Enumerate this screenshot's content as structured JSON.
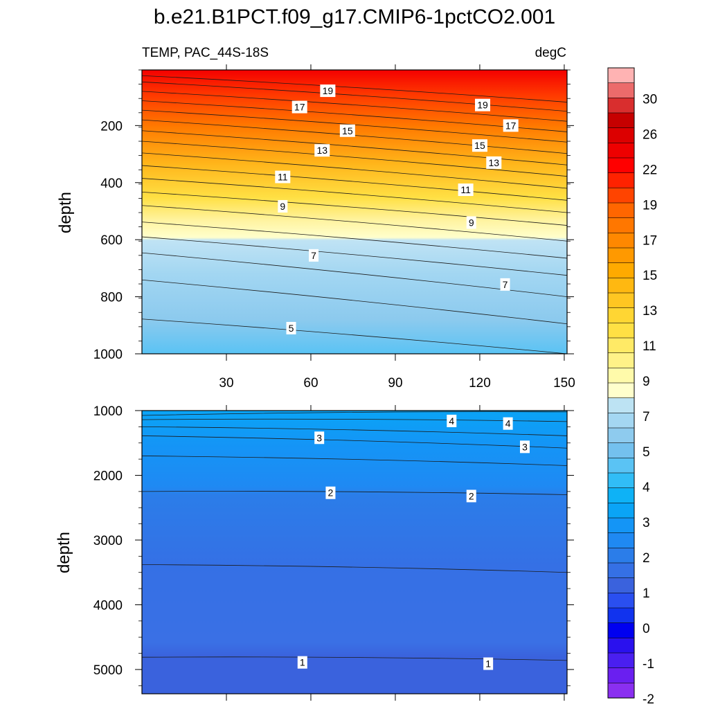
{
  "title": "b.e21.B1PCT.f09_g17.CMIP6-1pctCO2.001",
  "subtitle_left": "TEMP, PAC_44S-18S",
  "subtitle_right": "degC",
  "chart_data": [
    {
      "type": "heatmap",
      "panel": "upper",
      "ylabel": "depth",
      "ylim": [
        1000,
        5
      ],
      "xlim": [
        0,
        151
      ],
      "xticks": [
        30,
        60,
        90,
        120,
        150
      ],
      "yticks": [
        200,
        400,
        600,
        800,
        1000
      ],
      "contour_lines": [
        {
          "level": 5,
          "left": 878,
          "right": 1000
        },
        {
          "level": 6,
          "left": 741,
          "right": 895
        },
        {
          "level": 7,
          "left": 646,
          "right": 800
        },
        {
          "level": 8,
          "left": 590,
          "right": 725
        },
        {
          "level": 9,
          "left": 538,
          "right": 665
        },
        {
          "level": 10,
          "left": 480,
          "right": 605
        },
        {
          "level": 11,
          "left": 433,
          "right": 550
        },
        {
          "level": 12,
          "left": 385,
          "right": 505
        },
        {
          "level": 13,
          "left": 340,
          "right": 462
        },
        {
          "level": 14,
          "left": 296,
          "right": 420
        },
        {
          "level": 15,
          "left": 255,
          "right": 378
        },
        {
          "level": 16,
          "left": 218,
          "right": 338
        },
        {
          "level": 17,
          "left": 180,
          "right": 298
        },
        {
          "level": 18,
          "left": 146,
          "right": 258
        },
        {
          "level": 19,
          "left": 113,
          "right": 222
        },
        {
          "level": 20,
          "left": 80,
          "right": 185
        },
        {
          "level": 21,
          "left": 47,
          "right": 150
        },
        {
          "level": 22,
          "left": 25,
          "right": 118
        }
      ],
      "labels": [
        {
          "text": "19",
          "x": 66,
          "y": 78
        },
        {
          "text": "19",
          "x": 121,
          "y": 128
        },
        {
          "text": "17",
          "x": 56,
          "y": 135
        },
        {
          "text": "17",
          "x": 131,
          "y": 200
        },
        {
          "text": "15",
          "x": 73,
          "y": 218
        },
        {
          "text": "15",
          "x": 120,
          "y": 270
        },
        {
          "text": "13",
          "x": 64,
          "y": 287
        },
        {
          "text": "13",
          "x": 125,
          "y": 330
        },
        {
          "text": "11",
          "x": 50,
          "y": 380
        },
        {
          "text": "11",
          "x": 115,
          "y": 425
        },
        {
          "text": "9",
          "x": 50,
          "y": 483
        },
        {
          "text": "9",
          "x": 117,
          "y": 540
        },
        {
          "text": "7",
          "x": 61,
          "y": 655
        },
        {
          "text": "7",
          "x": 129,
          "y": 757
        },
        {
          "text": "5",
          "x": 53,
          "y": 910
        }
      ]
    },
    {
      "type": "heatmap",
      "panel": "lower",
      "ylabel": "depth",
      "ylim": [
        5375,
        1000
      ],
      "xlim": [
        0,
        151
      ],
      "xticks": [
        30,
        60,
        90,
        120,
        150
      ],
      "yticks": [
        1000,
        2000,
        3000,
        4000,
        5000
      ],
      "contour_lines": [
        {
          "level": 4.5,
          "left": 1075,
          "right": 1020
        },
        {
          "level": 4,
          "left": 1140,
          "right": 1170
        },
        {
          "level": 3.5,
          "left": 1250,
          "right": 1390
        },
        {
          "level": 3,
          "left": 1390,
          "right": 1580
        },
        {
          "level": 2.5,
          "left": 1700,
          "right": 1850
        },
        {
          "level": 2,
          "left": 2250,
          "right": 2300
        },
        {
          "level": 1.5,
          "left": 3380,
          "right": 3500
        },
        {
          "level": 1,
          "left": 4810,
          "right": 4860
        }
      ],
      "labels": [
        {
          "text": "4",
          "x": 110,
          "y": 1160
        },
        {
          "text": "4",
          "x": 130,
          "y": 1200
        },
        {
          "text": "3",
          "x": 63,
          "y": 1420
        },
        {
          "text": "3",
          "x": 136,
          "y": 1560
        },
        {
          "text": "2",
          "x": 67,
          "y": 2270
        },
        {
          "text": "2",
          "x": 117,
          "y": 2320
        },
        {
          "text": "1",
          "x": 57,
          "y": 4890
        },
        {
          "text": "1",
          "x": 123,
          "y": 4910
        }
      ]
    }
  ],
  "colorbar": {
    "labels": [
      "30",
      "26",
      "22",
      "19",
      "17",
      "15",
      "13",
      "11",
      "9",
      "7",
      "5",
      "4",
      "3",
      "2",
      "1",
      "0",
      "-1",
      "-2"
    ],
    "colors": [
      "#ffb3b3",
      "#ec6b6b",
      "#d92e2e",
      "#c60000",
      "#dc0000",
      "#ee0000",
      "#ff0000",
      "#ff2200",
      "#ff4400",
      "#ff6600",
      "#ff7700",
      "#ff8800",
      "#ff9900",
      "#ffaa00",
      "#ffb811",
      "#ffc622",
      "#ffd633",
      "#ffe044",
      "#ffea66",
      "#fff288",
      "#fffaaa",
      "#ffffcc",
      "#bde3f3",
      "#a4d7f2",
      "#8ecbee",
      "#74c1ee",
      "#5ac3f4",
      "#31bdf6",
      "#0eb2f6",
      "#0aa4f6",
      "#1495f6",
      "#1f89f3",
      "#2b7de9",
      "#3570e5",
      "#3a62dd",
      "#2a4ff0",
      "#1133ee",
      "#0000f0",
      "#2a11ee",
      "#4a1ff0",
      "#6a1ff0",
      "#8a2ff0"
    ]
  }
}
